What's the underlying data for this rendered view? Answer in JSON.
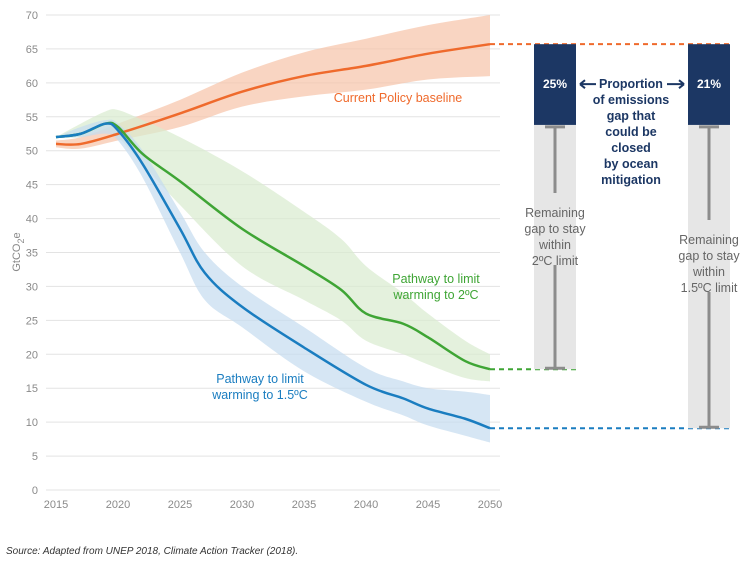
{
  "chart_data": {
    "type": "line",
    "ylabel": "GtCO2e",
    "ylim": [
      0,
      70
    ],
    "xlim": [
      2015,
      2050
    ],
    "yticks": [
      0,
      5,
      10,
      15,
      20,
      25,
      30,
      35,
      40,
      45,
      50,
      55,
      60,
      65,
      70
    ],
    "xticks": [
      2015,
      2020,
      2025,
      2030,
      2035,
      2040,
      2045,
      2050
    ],
    "grid": true,
    "series": [
      {
        "name": "Current Policy baseline",
        "label_lines": [
          "Current Policy baseline"
        ],
        "color": "#ef6a2c",
        "band_color": "#f6c3a8",
        "x": [
          2015,
          2017,
          2020,
          2025,
          2030,
          2035,
          2040,
          2045,
          2050
        ],
        "values": [
          51,
          51,
          52.5,
          55.5,
          58.7,
          61,
          62.5,
          64.3,
          65.7
        ],
        "upper": [
          51.5,
          52,
          54,
          57.5,
          61.5,
          64.5,
          66.5,
          68.5,
          70
        ],
        "lower": [
          50.5,
          50.3,
          51.5,
          53.5,
          56.5,
          58,
          59,
          60.5,
          61
        ]
      },
      {
        "name": "Pathway to limit warming to 2ºC",
        "label_lines": [
          "Pathway to limit",
          "warming to 2ºC"
        ],
        "color": "#3fa535",
        "band_color": "#d8ebcf",
        "x": [
          2015,
          2017,
          2019,
          2020,
          2022,
          2025,
          2030,
          2035,
          2038,
          2040,
          2043,
          2045,
          2048,
          2050
        ],
        "values": [
          52,
          52.5,
          54,
          53.5,
          49.5,
          45.5,
          38.5,
          33,
          29.5,
          26,
          24.5,
          22.5,
          19,
          17.8
        ],
        "upper": [
          52,
          54,
          55.8,
          56,
          54.5,
          52,
          47,
          41,
          37,
          33,
          29,
          26,
          22,
          20
        ],
        "lower": [
          52,
          52,
          53,
          52,
          48,
          42,
          33,
          28,
          25,
          22,
          20,
          18.5,
          16.5,
          16
        ]
      },
      {
        "name": "Pathway to limit warming to 1.5ºC",
        "label_lines": [
          "Pathway to limit",
          "warming to 1.5ºC"
        ],
        "color": "#1a7dc0",
        "band_color": "#c5dcef",
        "x": [
          2015,
          2017,
          2019,
          2020,
          2022,
          2025,
          2027,
          2030,
          2035,
          2040,
          2043,
          2045,
          2048,
          2050
        ],
        "values": [
          52,
          52.5,
          54,
          53,
          48,
          38.5,
          32,
          27,
          21,
          15.5,
          13.5,
          12,
          10.5,
          9.1
        ],
        "upper": [
          52,
          53.5,
          54.5,
          54,
          50,
          41,
          35,
          30,
          24,
          18,
          16,
          15,
          14.5,
          14
        ],
        "lower": [
          52,
          52,
          52.5,
          51.5,
          46,
          35,
          28,
          24,
          17.5,
          13,
          11,
          9.5,
          8,
          7
        ]
      }
    ],
    "gap_bars": [
      {
        "top": 65.7,
        "mitigation_bottom": 53.8,
        "bottom": 17.8,
        "percent": "25%",
        "remaining_lines": [
          "Remaining",
          "gap to stay",
          "within",
          "2ºC limit"
        ]
      },
      {
        "top": 65.7,
        "mitigation_bottom": 53.8,
        "bottom": 9.1,
        "percent": "21%",
        "remaining_lines": [
          "Remaining",
          "gap to stay",
          "within",
          "1.5ºC limit"
        ]
      }
    ],
    "proportion_label_lines": [
      "Proportion",
      "of emissions",
      "gap that",
      "could be",
      "closed",
      "by ocean",
      "mitigation"
    ],
    "colors": {
      "navy": "#1c3764",
      "grey_bar": "#e6e6e6",
      "grey_line": "#8c8c8c",
      "grid": "#e3e3e3"
    }
  },
  "source": "Source: Adapted from UNEP 2018, Climate Action Tracker (2018)."
}
